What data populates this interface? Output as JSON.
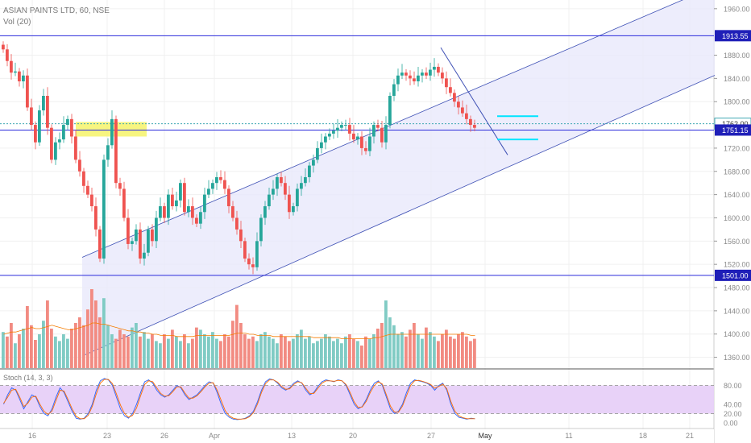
{
  "symbol_title": "ASIAN PAINTS LTD, 60, NSE",
  "volume_legend": "Vol (20)",
  "stoch_legend": "Stoch (14, 3, 3)",
  "colors": {
    "up": "#26a69a",
    "down": "#ef5350",
    "vol_up": "#80cbc4",
    "vol_down": "#f28b82",
    "channel_line": "#3f51b5",
    "channel_fill": "#e8e8fb",
    "hline": "#2a2adb",
    "dotted_line": "#3fa7b3",
    "highlight": "#f6f36a",
    "cyan": "#00e5ff",
    "stoch_band": "#e5cdf7",
    "stoch_k": "#2962ff",
    "stoch_d": "#ff6d00"
  },
  "chart_data": [
    {
      "type": "candlestick",
      "title": "ASIAN PAINTS LTD, 60, NSE",
      "ylim": [
        1340,
        1975
      ],
      "y_ticks": [
        "1960.00",
        "1880.00",
        "1840.00",
        "1800.00",
        "1720.00",
        "1680.00",
        "1640.00",
        "1600.00",
        "1560.00",
        "1520.00",
        "1480.00",
        "1440.00",
        "1400.00",
        "1360.00"
      ],
      "x_tick_labels": [
        "16",
        "23",
        "26",
        "Apr",
        "13",
        "20",
        "27",
        "May",
        "11",
        "18",
        "21"
      ],
      "price_labels": [
        {
          "value": 1913.55,
          "text": "1913.55",
          "style": "hline"
        },
        {
          "value": 1762.0,
          "text": "1762.00",
          "style": "dotted"
        },
        {
          "value": 1751.15,
          "text": "1751.15",
          "style": "hline"
        },
        {
          "value": 1501.0,
          "text": "1501.00",
          "style": "hline"
        }
      ],
      "horizontal_lines": [
        1913.55,
        1751.15,
        1501.0
      ],
      "dotted_line": 1762.0,
      "highlight_zone": {
        "x_index_start": 22,
        "x_index_end": 43,
        "price_low": 1740,
        "price_high": 1765
      },
      "channel": {
        "upper": [
          [
            20,
            1532
          ],
          [
            170,
            1978
          ]
        ],
        "lower": [
          [
            20,
            1362
          ],
          [
            185,
            1870
          ]
        ],
        "x_end_index": 185
      },
      "downtrend_line": [
        [
          140,
          1893
        ],
        [
          160,
          1725
        ]
      ],
      "cyan_markers": [
        {
          "price": 1775,
          "x_index_start": 157,
          "x_index_end": 170
        },
        {
          "price": 1735,
          "x_index_start": 157,
          "x_index_end": 170
        }
      ],
      "close_series": [
        1890,
        1870,
        1850,
        1852,
        1835,
        1845,
        1790,
        1760,
        1730,
        1785,
        1810,
        1755,
        1700,
        1730,
        1735,
        1760,
        1770,
        1740,
        1700,
        1680,
        1655,
        1640,
        1620,
        1580,
        1530,
        1700,
        1725,
        1770,
        1660,
        1650,
        1600,
        1555,
        1560,
        1580,
        1530,
        1540,
        1580,
        1560,
        1600,
        1620,
        1600,
        1640,
        1620,
        1630,
        1660,
        1610,
        1620,
        1600,
        1590,
        1610,
        1640,
        1650,
        1660,
        1670,
        1665,
        1650,
        1620,
        1600,
        1580,
        1560,
        1530,
        1520,
        1515,
        1560,
        1600,
        1620,
        1640,
        1650,
        1670,
        1660,
        1640,
        1610,
        1620,
        1650,
        1660,
        1670,
        1690,
        1700,
        1720,
        1730,
        1740,
        1745,
        1750,
        1755,
        1760,
        1760,
        1745,
        1735,
        1740,
        1720,
        1715,
        1740,
        1760,
        1755,
        1730,
        1760,
        1810,
        1830,
        1845,
        1850,
        1845,
        1840,
        1835,
        1845,
        1850,
        1845,
        1855,
        1860,
        1850,
        1840,
        1825,
        1815,
        1800,
        1790,
        1780,
        1770,
        1760,
        1755
      ],
      "volume_series": [
        32,
        28,
        40,
        22,
        30,
        35,
        55,
        38,
        25,
        30,
        42,
        60,
        35,
        28,
        24,
        30,
        26,
        35,
        40,
        45,
        38,
        52,
        70,
        60,
        45,
        62,
        38,
        30,
        26,
        34,
        30,
        28,
        36,
        40,
        28,
        32,
        26,
        30,
        24,
        22,
        30,
        26,
        34,
        28,
        24,
        30,
        22,
        26,
        36,
        34,
        30,
        28,
        32,
        26,
        24,
        30,
        28,
        42,
        56,
        40,
        30,
        26,
        28,
        24,
        30,
        32,
        28,
        26,
        22,
        30,
        28,
        24,
        26,
        30,
        34,
        26,
        28,
        22,
        24,
        26,
        30,
        28,
        24,
        26,
        22,
        28,
        30,
        26,
        24,
        20,
        28,
        26,
        30,
        35,
        40,
        60,
        45,
        38,
        30,
        32,
        28,
        34,
        40,
        30,
        26,
        36,
        32,
        28,
        24,
        30,
        34,
        28,
        26,
        30,
        32,
        28,
        24,
        26
      ],
      "volume_ma_series": [
        30,
        31,
        32,
        32,
        33,
        34,
        35,
        36,
        35,
        35,
        36,
        37,
        38,
        37,
        36,
        35,
        34,
        34,
        35,
        36,
        37,
        38,
        40,
        40,
        39,
        39,
        38,
        37,
        36,
        35,
        34,
        33,
        33,
        32,
        32,
        31,
        31,
        30,
        30,
        29,
        29,
        29,
        29,
        28,
        28,
        28,
        28,
        28,
        29,
        29,
        29,
        29,
        29,
        29,
        29,
        29,
        29,
        30,
        31,
        31,
        31,
        30,
        30,
        29,
        29,
        29,
        29,
        28,
        28,
        28,
        28,
        28,
        28,
        28,
        28,
        28,
        28,
        27,
        27,
        27,
        27,
        27,
        27,
        27,
        26,
        26,
        26,
        26,
        26,
        26,
        26,
        26,
        27,
        27,
        28,
        29,
        30,
        30,
        30,
        30,
        30,
        30,
        30,
        30,
        30,
        30,
        30,
        30,
        30,
        30,
        30,
        30,
        30,
        30,
        30,
        30,
        29,
        29
      ]
    },
    {
      "type": "line",
      "title": "Stoch (14, 3, 3)",
      "ylim": [
        0,
        100
      ],
      "y_ticks": [
        "80.00",
        "40.00",
        "20.00",
        "0.00"
      ],
      "band": [
        20,
        80
      ],
      "series": [
        {
          "name": "%K",
          "values": [
            40,
            60,
            75,
            70,
            50,
            30,
            45,
            60,
            55,
            35,
            20,
            15,
            30,
            55,
            75,
            65,
            45,
            25,
            10,
            8,
            10,
            20,
            40,
            70,
            90,
            95,
            92,
            80,
            55,
            30,
            15,
            10,
            20,
            40,
            65,
            88,
            92,
            85,
            70,
            60,
            55,
            60,
            70,
            80,
            75,
            60,
            50,
            55,
            60,
            70,
            80,
            88,
            85,
            65,
            40,
            20,
            12,
            8,
            7,
            8,
            10,
            15,
            25,
            45,
            70,
            88,
            94,
            92,
            85,
            75,
            70,
            75,
            85,
            90,
            85,
            70,
            60,
            65,
            78,
            88,
            92,
            90,
            88,
            92,
            90,
            80,
            60,
            40,
            30,
            35,
            50,
            70,
            85,
            90,
            80,
            55,
            30,
            20,
            25,
            40,
            65,
            85,
            92,
            90,
            88,
            85,
            80,
            70,
            80,
            85,
            70,
            40,
            20,
            12,
            10,
            8,
            10,
            9
          ]
        },
        {
          "name": "%D",
          "values": [
            42,
            55,
            70,
            72,
            55,
            35,
            42,
            55,
            57,
            40,
            25,
            18,
            25,
            48,
            70,
            68,
            50,
            30,
            14,
            9,
            9,
            16,
            35,
            62,
            85,
            93,
            93,
            84,
            62,
            38,
            20,
            12,
            16,
            32,
            58,
            82,
            90,
            88,
            75,
            63,
            57,
            58,
            67,
            77,
            77,
            64,
            53,
            53,
            58,
            67,
            77,
            85,
            86,
            70,
            48,
            26,
            15,
            10,
            8,
            8,
            9,
            13,
            22,
            40,
            65,
            84,
            92,
            92,
            87,
            78,
            72,
            73,
            82,
            88,
            86,
            74,
            63,
            63,
            74,
            85,
            90,
            90,
            89,
            91,
            90,
            82,
            65,
            45,
            33,
            34,
            46,
            65,
            80,
            88,
            83,
            60,
            36,
            23,
            23,
            36,
            58,
            80,
            90,
            91,
            89,
            86,
            82,
            74,
            78,
            83,
            73,
            46,
            25,
            15,
            11,
            9,
            9,
            9
          ]
        }
      ]
    }
  ]
}
